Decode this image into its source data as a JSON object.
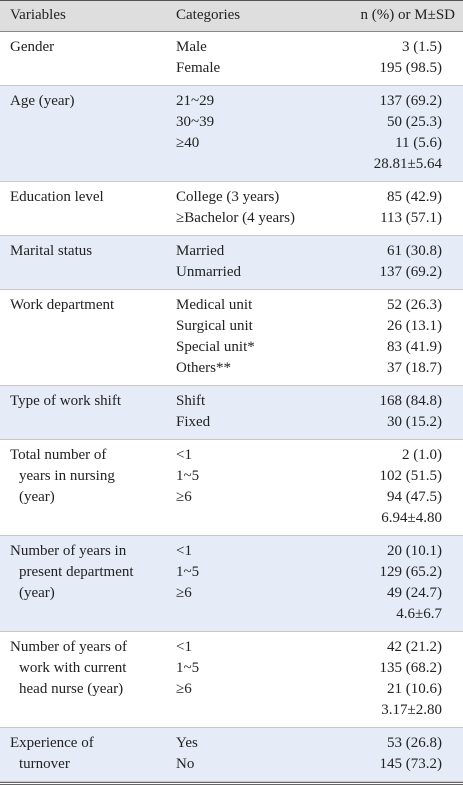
{
  "table": {
    "header": [
      "Variables",
      "Categories",
      "n (%) or M±SD"
    ],
    "rows": [
      {
        "variable": [
          "Gender"
        ],
        "entries": [
          {
            "category": "Male",
            "value": "3 (1.5)"
          },
          {
            "category": "Female",
            "value": "195 (98.5)"
          }
        ]
      },
      {
        "variable": [
          "Age (year)"
        ],
        "entries": [
          {
            "category": "21~29",
            "value": "137 (69.2)"
          },
          {
            "category": "30~39",
            "value": "50 (25.3)"
          },
          {
            "category": "≥40",
            "value": "11 (5.6)"
          },
          {
            "value": "28.81±5.64"
          }
        ]
      },
      {
        "variable": [
          "Education level"
        ],
        "entries": [
          {
            "category": "College (3 years)",
            "value": "85 (42.9)"
          },
          {
            "category": "≥Bachelor (4 years)",
            "value": "113 (57.1)"
          }
        ]
      },
      {
        "variable": [
          "Marital status"
        ],
        "entries": [
          {
            "category": "Married",
            "value": "61 (30.8)"
          },
          {
            "category": "Unmarried",
            "value": "137 (69.2)"
          }
        ]
      },
      {
        "variable": [
          "Work department"
        ],
        "entries": [
          {
            "category": "Medical unit",
            "value": "52 (26.3)"
          },
          {
            "category": "Surgical unit",
            "value": "26 (13.1)"
          },
          {
            "category": "Special unit*",
            "value": "83 (41.9)"
          },
          {
            "category": "Others**",
            "value": "37 (18.7)"
          }
        ]
      },
      {
        "variable": [
          "Type of work shift"
        ],
        "entries": [
          {
            "category": "Shift",
            "value": "168 (84.8)"
          },
          {
            "category": "Fixed",
            "value": "30 (15.2)"
          }
        ]
      },
      {
        "variable": [
          "Total number of",
          "years in nursing",
          "(year)"
        ],
        "entries": [
          {
            "category": "<1",
            "value": "2 (1.0)"
          },
          {
            "category": "1~5",
            "value": "102 (51.5)"
          },
          {
            "category": "≥6",
            "value": "94 (47.5)"
          },
          {
            "value": "6.94±4.80"
          }
        ]
      },
      {
        "variable": [
          "Number of years in",
          "present department",
          "(year)"
        ],
        "entries": [
          {
            "category": "<1",
            "value": "20 (10.1)"
          },
          {
            "category": "1~5",
            "value": "129 (65.2)"
          },
          {
            "category": "≥6",
            "value": "49 (24.7)"
          },
          {
            "value": "4.6±6.7"
          }
        ]
      },
      {
        "variable": [
          "Number of years of",
          "work with current",
          "head nurse (year)"
        ],
        "entries": [
          {
            "category": "<1",
            "value": "42 (21.2)"
          },
          {
            "category": "1~5",
            "value": "135 (68.2)"
          },
          {
            "category": "≥6",
            "value": "21 (10.6)"
          },
          {
            "value": "3.17±2.80"
          }
        ]
      },
      {
        "variable": [
          "Experience of",
          "turnover"
        ],
        "entries": [
          {
            "category": "Yes",
            "value": "53 (26.8)"
          },
          {
            "category": "No",
            "value": "145 (73.2)"
          }
        ]
      }
    ]
  }
}
